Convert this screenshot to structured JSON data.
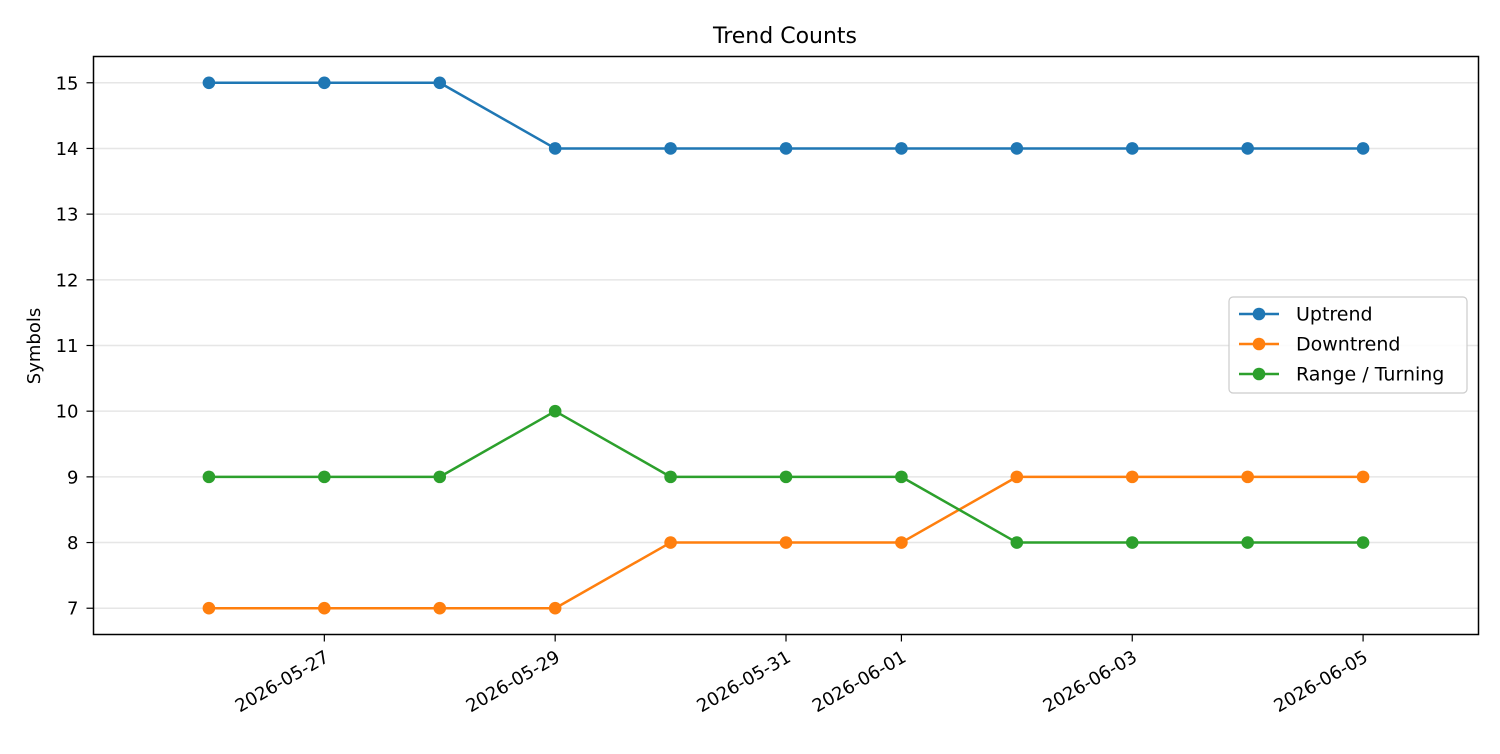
{
  "chart_data": {
    "type": "line",
    "title": "Trend Counts",
    "xlabel": "",
    "ylabel": "Symbols",
    "x": [
      "2026-05-26",
      "2026-05-27",
      "2026-05-28",
      "2026-05-29",
      "2026-05-30",
      "2026-05-31",
      "2026-06-01",
      "2026-06-02",
      "2026-06-03",
      "2026-06-04",
      "2026-06-05"
    ],
    "x_ticks": [
      "2026-05-27",
      "2026-05-29",
      "2026-05-31",
      "2026-06-01",
      "2026-06-03",
      "2026-06-05"
    ],
    "y_ticks": [
      7,
      8,
      9,
      10,
      11,
      12,
      13,
      14,
      15
    ],
    "ylim": [
      6.6,
      15.4
    ],
    "xlim": [
      "2026-05-25",
      "2026-06-06"
    ],
    "grid": "horizontal",
    "legend": "center-right",
    "series": [
      {
        "name": "Uptrend",
        "color": "#1f77b4",
        "values": [
          15,
          15,
          15,
          14,
          14,
          14,
          14,
          14,
          14,
          14,
          14
        ]
      },
      {
        "name": "Downtrend",
        "color": "#ff7f0e",
        "values": [
          7,
          7,
          7,
          7,
          8,
          8,
          8,
          9,
          9,
          9,
          9
        ]
      },
      {
        "name": "Range / Turning",
        "color": "#2ca02c",
        "values": [
          9,
          9,
          9,
          10,
          9,
          9,
          9,
          8,
          8,
          8,
          8
        ]
      }
    ]
  }
}
